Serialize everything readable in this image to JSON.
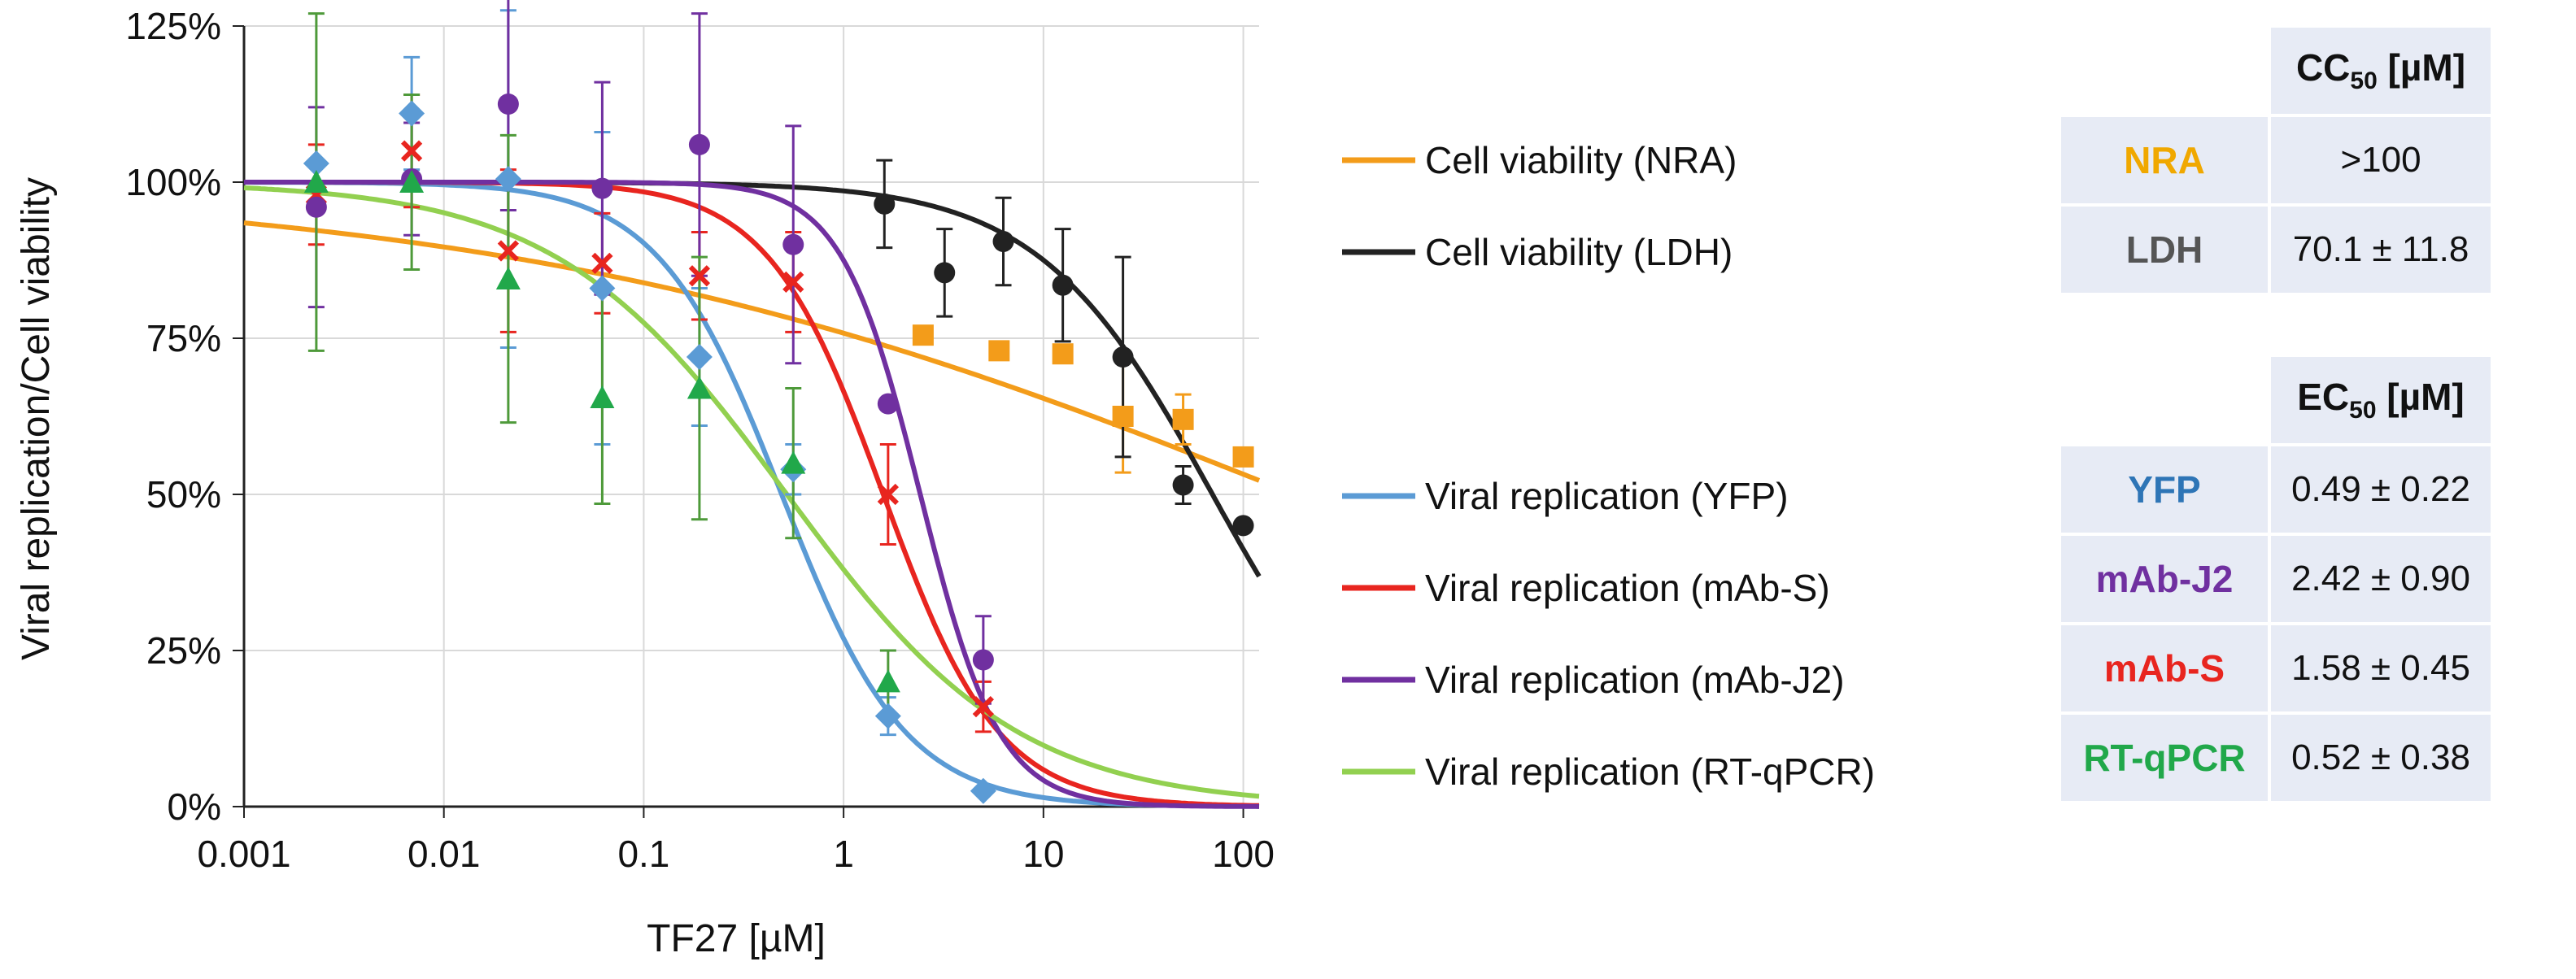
{
  "chart_data": {
    "type": "scatter",
    "xscale": "log",
    "xlabel": "TF27 [µM]",
    "ylabel": "Viral replication/Cell viability",
    "xlim": [
      0.001,
      120
    ],
    "ylim": [
      0,
      125
    ],
    "x_ticks": [
      "0.001",
      "0.01",
      "0.1",
      "1",
      "10",
      "100"
    ],
    "y_ticks": [
      "0%",
      "25%",
      "50%",
      "75%",
      "100%",
      "125%"
    ],
    "series": [
      {
        "name": "Cell viability (NRA)",
        "color": "#f39c1a",
        "marker": "square",
        "points": [
          {
            "x": 2.5,
            "y": 75.5,
            "err": 0
          },
          {
            "x": 6.0,
            "y": 73.0,
            "err": 0
          },
          {
            "x": 12.5,
            "y": 72.5,
            "err": 1
          },
          {
            "x": 25,
            "y": 62.5,
            "err": 9
          },
          {
            "x": 50,
            "y": 62.0,
            "err": 4
          },
          {
            "x": 100,
            "y": 56.0,
            "err": 0
          }
        ],
        "fit": {
          "bottom": 0,
          "top": 100,
          "ic50": 180,
          "hill": 0.22
        }
      },
      {
        "name": "Cell viability (LDH)",
        "color": "#222222",
        "marker": "circle",
        "points": [
          {
            "x": 1.6,
            "y": 96.5,
            "err": 7
          },
          {
            "x": 3.2,
            "y": 85.5,
            "err": 7
          },
          {
            "x": 6.3,
            "y": 90.5,
            "err": 7
          },
          {
            "x": 12.5,
            "y": 83.5,
            "err": 9
          },
          {
            "x": 25,
            "y": 72.0,
            "err": 16
          },
          {
            "x": 50,
            "y": 51.5,
            "err": 3
          },
          {
            "x": 100,
            "y": 45.0,
            "err": 0
          }
        ],
        "fit": {
          "bottom": 0,
          "top": 100,
          "ic50": 70.1,
          "hill": 1.0
        }
      },
      {
        "name": "Viral replication (YFP)",
        "color": "#5b9bd5",
        "marker": "diamond",
        "points": [
          {
            "x": 0.0023,
            "y": 103,
            "err": 0
          },
          {
            "x": 0.0069,
            "y": 111,
            "err": 9
          },
          {
            "x": 0.021,
            "y": 100.5,
            "err": 27
          },
          {
            "x": 0.062,
            "y": 83,
            "err": 25
          },
          {
            "x": 0.19,
            "y": 72,
            "err": 11
          },
          {
            "x": 0.56,
            "y": 54,
            "err": 4
          },
          {
            "x": 1.67,
            "y": 14.5,
            "err": 3
          },
          {
            "x": 5.0,
            "y": 2.5,
            "err": 0
          }
        ],
        "fit": {
          "bottom": 0,
          "top": 100,
          "ic50": 0.49,
          "hill": 1.4
        }
      },
      {
        "name": "Viral replication (mAb-S)",
        "color": "#e8251f",
        "marker": "x",
        "points": [
          {
            "x": 0.0023,
            "y": 98,
            "err": 8
          },
          {
            "x": 0.0069,
            "y": 105,
            "err": 9
          },
          {
            "x": 0.021,
            "y": 89,
            "err": 13
          },
          {
            "x": 0.062,
            "y": 87,
            "err": 8
          },
          {
            "x": 0.19,
            "y": 85,
            "err": 7
          },
          {
            "x": 0.56,
            "y": 84,
            "err": 8
          },
          {
            "x": 1.67,
            "y": 50,
            "err": 8
          },
          {
            "x": 5.0,
            "y": 16,
            "err": 4
          }
        ],
        "fit": {
          "bottom": 0,
          "top": 100,
          "ic50": 1.58,
          "hill": 1.5
        }
      },
      {
        "name": "Viral replication (mAb-J2)",
        "color": "#7030a0",
        "marker": "circle",
        "points": [
          {
            "x": 0.0023,
            "y": 96,
            "err": 16
          },
          {
            "x": 0.0069,
            "y": 100.5,
            "err": 9
          },
          {
            "x": 0.021,
            "y": 112.5,
            "err": 17
          },
          {
            "x": 0.062,
            "y": 99,
            "err": 17
          },
          {
            "x": 0.19,
            "y": 106,
            "err": 21
          },
          {
            "x": 0.56,
            "y": 90,
            "err": 19
          },
          {
            "x": 1.67,
            "y": 64.5,
            "err": 0
          },
          {
            "x": 5.0,
            "y": 23.5,
            "err": 7
          }
        ],
        "fit": {
          "bottom": 0,
          "top": 100,
          "ic50": 2.42,
          "hill": 2.2
        }
      },
      {
        "name": "Viral replication (RT-qPCR)",
        "color": "#92d050",
        "marker": "triangle",
        "errColor": "#4e9a3a",
        "points": [
          {
            "x": 0.0023,
            "y": 100,
            "err": 27
          },
          {
            "x": 0.0069,
            "y": 100,
            "err": 14
          },
          {
            "x": 0.021,
            "y": 84.5,
            "err": 23
          },
          {
            "x": 0.062,
            "y": 65.5,
            "err": 17
          },
          {
            "x": 0.19,
            "y": 67,
            "err": 21
          },
          {
            "x": 0.56,
            "y": 55,
            "err": 12
          },
          {
            "x": 1.67,
            "y": 20,
            "err": 5
          }
        ],
        "fit": {
          "bottom": 0,
          "top": 100,
          "ic50": 0.52,
          "hill": 0.75
        }
      }
    ]
  },
  "cc50_table": {
    "header_main": "CC",
    "header_sub": "50",
    "header_unit": " [µM]",
    "rows": [
      {
        "label": "NRA",
        "value": ">100",
        "color": "#f0a800"
      },
      {
        "label": "LDH",
        "value": "70.1 ± 11.8",
        "color": "#555555"
      }
    ]
  },
  "ec50_table": {
    "header_main": "EC",
    "header_sub": "50",
    "header_unit": " [µM]",
    "rows": [
      {
        "label": "YFP",
        "value": "0.49 ± 0.22",
        "color": "#2e75b6"
      },
      {
        "label": "mAb-J2",
        "value": "2.42 ± 0.90",
        "color": "#7030a0"
      },
      {
        "label": "mAb-S",
        "value": "1.58 ± 0.45",
        "color": "#e8251f"
      },
      {
        "label": "RT-qPCR",
        "value": "0.52 ± 0.38",
        "color": "#21a84a"
      }
    ]
  }
}
